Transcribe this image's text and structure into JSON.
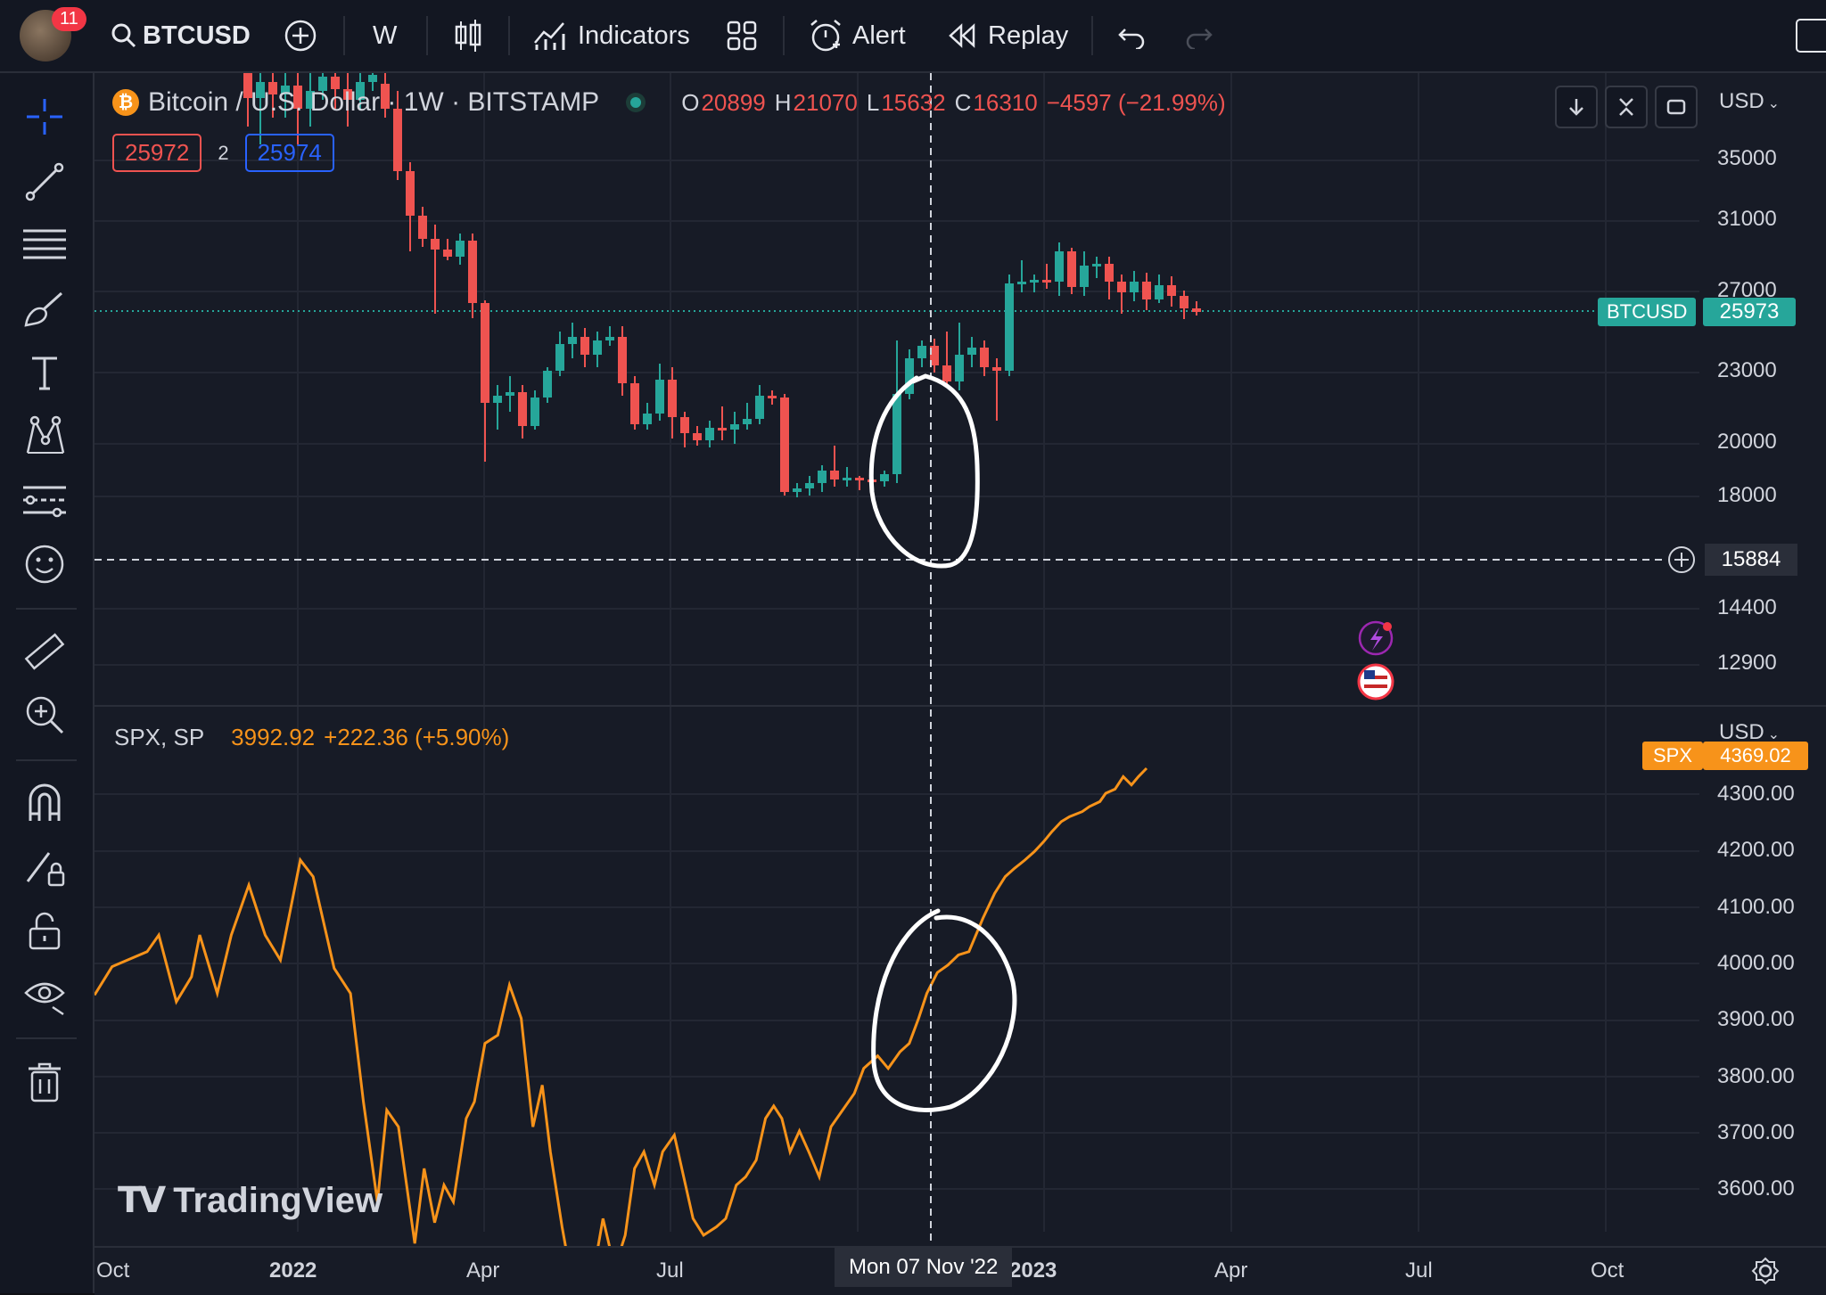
{
  "toolbar": {
    "notifications": "11",
    "symbol": "BTCUSD",
    "interval": "W",
    "indicators": "Indicators",
    "alert": "Alert",
    "replay": "Replay"
  },
  "main_pane": {
    "title": "Bitcoin / U.S. Dollar · 1W · BITSTAMP",
    "ohlc": {
      "o_label": "O",
      "o": "20899",
      "h_label": "H",
      "h": "21070",
      "l_label": "L",
      "l": "15632",
      "c_label": "C",
      "c": "16310",
      "chg": "−4597 (−21.99%)"
    },
    "bid": "25972",
    "spread": "2",
    "ask": "25974",
    "currency": "USD",
    "price_labels": [
      "35000",
      "31000",
      "27000",
      "23000",
      "20000",
      "18000",
      "15884",
      "14400",
      "12900"
    ],
    "last_label": "BTCUSD",
    "last_value": "25973",
    "crosshair_value": "15884",
    "colors": {
      "up": "#26a69a",
      "down": "#ef5350",
      "accent": "#2962ff"
    }
  },
  "spx_pane": {
    "title": "SPX, SP",
    "value": "3992.92",
    "change": "+222.36 (+5.90%)",
    "currency": "USD",
    "price_labels": [
      "4300.00",
      "4200.00",
      "4100.00",
      "4000.00",
      "3900.00",
      "3800.00",
      "3700.00",
      "3600.00"
    ],
    "last_label": "SPX",
    "last_value": "4369.02",
    "line_color": "#f7931a"
  },
  "time_axis": {
    "labels": [
      "Oct",
      "2022",
      "Apr",
      "Jul",
      "2023",
      "Apr",
      "Jul",
      "Oct"
    ],
    "crosshair_date": "Mon 07 Nov '22"
  },
  "watermark": "TradingView",
  "sidebar_icons": [
    "crosshair-icon",
    "trendline-icon",
    "fib-icon",
    "brush-icon",
    "text-icon",
    "pattern-icon",
    "forecast-icon",
    "emoji-icon",
    "ruler-icon",
    "zoom-in-icon",
    "magnet-icon",
    "lock-draw-icon",
    "lock-icon",
    "eye-icon",
    "trash-icon"
  ]
}
